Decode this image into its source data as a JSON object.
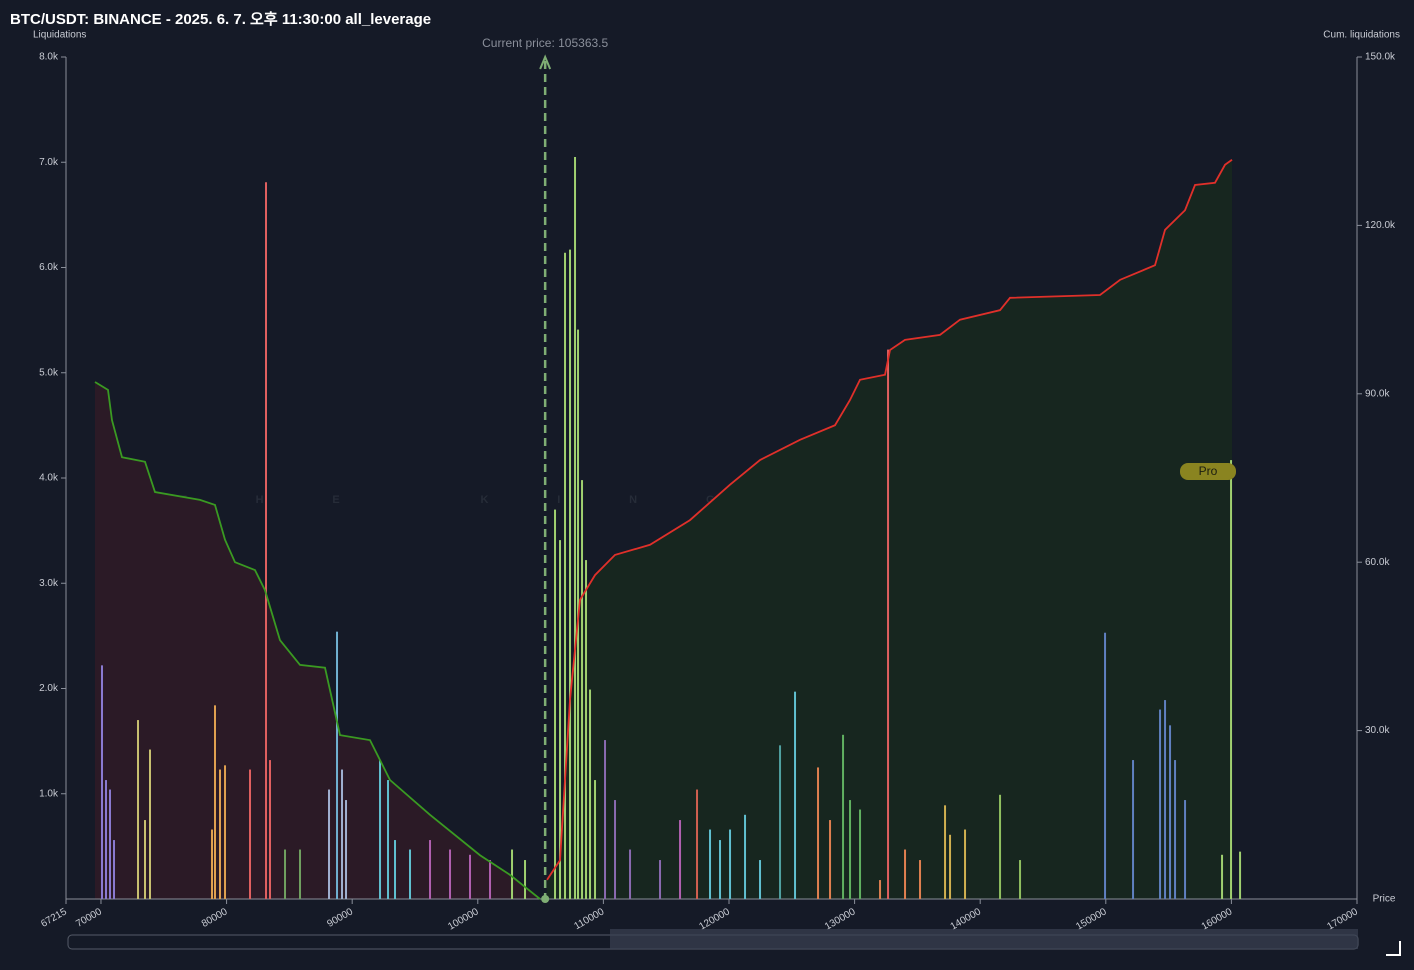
{
  "chart_data": {
    "type": "bar",
    "title": "BTC/USDT: BINANCE - 2025. 6. 7. 오후 11:30:00 all_leverage",
    "y_label": "Liquidations",
    "y2_label": "Cum. liquidations",
    "x_label": "Price",
    "annotation": "Current price: 105363.5",
    "current_price": 105363.5,
    "watermark": "THE KINGFISHER",
    "watermark_suffix": ".IO",
    "badge": "Pro",
    "xlim": [
      67215,
      170000
    ],
    "xticks": [
      67215,
      70000,
      80000,
      90000,
      100000,
      110000,
      120000,
      130000,
      140000,
      150000,
      160000,
      170000
    ],
    "ylim": [
      0,
      8000
    ],
    "yticks": [
      {
        "value": 1000,
        "label": "1.0k"
      },
      {
        "value": 2000,
        "label": "2.0k"
      },
      {
        "value": 3000,
        "label": "3.0k"
      },
      {
        "value": 4000,
        "label": "4.0k"
      },
      {
        "value": 5000,
        "label": "5.0k"
      },
      {
        "value": 6000,
        "label": "6.0k"
      },
      {
        "value": 7000,
        "label": "7.0k"
      },
      {
        "value": 8000,
        "label": "8.0k"
      }
    ],
    "y2lim": [
      0,
      150000
    ],
    "y2ticks": [
      {
        "value": 30000,
        "label": "30.0k"
      },
      {
        "value": 60000,
        "label": "60.0k"
      },
      {
        "value": 90000,
        "label": "90.0k"
      },
      {
        "value": 120000,
        "label": "120.0k"
      },
      {
        "value": 150000,
        "label": "150.0k"
      }
    ],
    "series": [
      {
        "type": "bar",
        "x": [
          70081,
          70400,
          70718,
          71037,
          72948,
          73505,
          73903,
          78840,
          79078,
          79476,
          79875,
          81865,
          83139,
          83457,
          84652,
          85846,
          88155,
          88792,
          89190,
          89509,
          92216,
          92853,
          93410,
          94604,
          96197,
          97789,
          99381,
          100974,
          102726,
          103761,
          106149,
          106547,
          106945,
          107343,
          107742,
          107980,
          108299,
          108617,
          108936,
          109334,
          110130,
          110926,
          112121,
          114509,
          116102,
          117455,
          118490,
          119286,
          120083,
          121277,
          122471,
          124064,
          125258,
          127089,
          128045,
          129080,
          129637,
          130433,
          132026,
          132663,
          134016,
          135210,
          137201,
          137599,
          138793,
          141580,
          143172,
          149940,
          152169,
          154319,
          154717,
          155115,
          155514,
          156310,
          159255,
          159972,
          160689
        ],
        "values": [
          2220,
          1130,
          1040,
          560,
          1700,
          750,
          1420,
          660,
          1840,
          1230,
          1270,
          1230,
          6810,
          1320,
          470,
          470,
          1040,
          2540,
          1230,
          940,
          1320,
          1130,
          560,
          470,
          560,
          470,
          420,
          370,
          470,
          370,
          3700,
          3410,
          6140,
          6170,
          7050,
          5410,
          3980,
          3220,
          1990,
          1130,
          1510,
          940,
          470,
          370,
          750,
          1040,
          660,
          560,
          660,
          800,
          370,
          1460,
          1970,
          1250,
          750,
          1560,
          940,
          850,
          180,
          5220,
          470,
          370,
          890,
          610,
          660,
          990,
          370,
          2530,
          1320,
          1800,
          1890,
          1650,
          1320,
          940,
          420,
          4170,
          450
        ],
        "colors": [
          "#8a7ad0",
          "#8a7ad0",
          "#8a7ad0",
          "#8a7ad0",
          "#c8c070",
          "#c8c070",
          "#c8c070",
          "#e0a050",
          "#e0a050",
          "#e0a050",
          "#e0a050",
          "#e06060",
          "#e06060",
          "#e06060",
          "#70a060",
          "#70a060",
          "#a0b0d0",
          "#70b0d0",
          "#a0b0d0",
          "#a0b0d0",
          "#60c0d0",
          "#60c0d0",
          "#60c0d0",
          "#60c0d0",
          "#b060b0",
          "#b060b0",
          "#b060b0",
          "#b060b0",
          "#a0d070",
          "#a0d070",
          "#a0d070",
          "#a0d070",
          "#a0d070",
          "#a0d070",
          "#a0d070",
          "#a0d070",
          "#a0d070",
          "#a0d070",
          "#a0d070",
          "#a0d070",
          "#8a6ab0",
          "#8a6ab0",
          "#8a6ab0",
          "#8a6ab0",
          "#b060b0",
          "#d06050",
          "#60c0d0",
          "#60c0d0",
          "#60c0d0",
          "#60c0d0",
          "#60c0d0",
          "#50a0a0",
          "#60c0d0",
          "#e08050",
          "#e08050",
          "#60b060",
          "#60b060",
          "#60b060",
          "#e08050",
          "#e06060",
          "#e08050",
          "#e08050",
          "#d0b050",
          "#d0b050",
          "#d0b050",
          "#90c060",
          "#90c060",
          "#6080c0",
          "#6080c0",
          "#6080c0",
          "#6080c0",
          "#6080c0",
          "#6080c0",
          "#6080c0",
          "#a0d070",
          "#a0d070",
          "#a0d070"
        ]
      },
      {
        "type": "line",
        "axis": "y2",
        "color": "#3a9a22",
        "fill": "#2b1a26",
        "x": [
          69524,
          70559,
          70877,
          71673,
          73504,
          74300,
          77884,
          79078,
          79874,
          80670,
          82263,
          83059,
          84253,
          85846,
          87836,
          89030,
          91419,
          93011,
          96196,
          100177,
          102565,
          104954
        ],
        "values": [
          92100,
          90700,
          85300,
          78700,
          77900,
          72500,
          71100,
          70200,
          64000,
          60000,
          58600,
          55000,
          46100,
          41700,
          41200,
          29200,
          28300,
          21200,
          15000,
          7800,
          4300,
          0
        ]
      },
      {
        "type": "line",
        "axis": "y2",
        "color": "#e0302a",
        "fill": "#17261f",
        "x": [
          105511,
          106546,
          107342,
          108138,
          109333,
          110925,
          113712,
          116896,
          120081,
          122470,
          125654,
          128441,
          129635,
          130431,
          132421,
          132820,
          134014,
          136801,
          138393,
          141578,
          142374,
          149540,
          151132,
          153919,
          154715,
          156307,
          157103,
          158695,
          159492,
          160049
        ],
        "values": [
          3400,
          6900,
          35500,
          53300,
          57700,
          61300,
          63100,
          67500,
          73800,
          78200,
          81800,
          84400,
          88900,
          92500,
          93400,
          97800,
          99600,
          100500,
          103200,
          104900,
          107100,
          107600,
          110300,
          112900,
          119200,
          122700,
          127200,
          127600,
          130800,
          131700
        ]
      }
    ]
  }
}
